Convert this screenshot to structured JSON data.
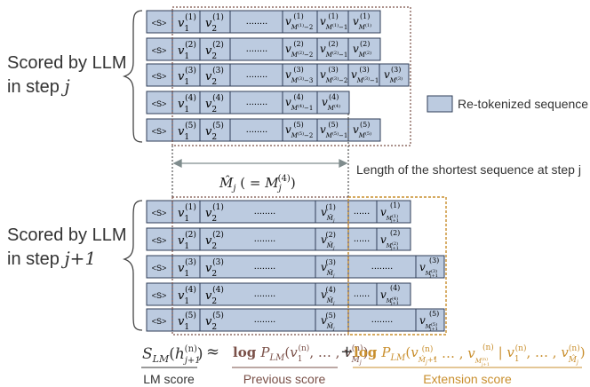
{
  "labels": {
    "top_group": [
      "Scored by LLM",
      "in step "
    ],
    "top_step": "j",
    "bottom_group": [
      "Scored by LLM",
      "in step "
    ],
    "bottom_step": "j+1",
    "legend": "Re-tokenized sequence",
    "shortest_desc": "Length of the shortest sequence at step j",
    "lm_score": "LM score",
    "previous_score": "Previous score",
    "extension_score": "Extension score",
    "approx": "≈",
    "plus": "+"
  },
  "colors": {
    "cell_fill": "#bccbe0",
    "cell_stroke": "#2f3e57",
    "previous": "#7a5048",
    "extension": "#c98f2e",
    "arrow": "#7f8c8d",
    "text": "#333333"
  },
  "top_rows": [
    [
      "<S>",
      "v1(1)",
      "v2(1)",
      "........",
      "vM(1)-2(1)",
      "vM(1)-1(1)",
      "vM(1)(1)"
    ],
    [
      "<S>",
      "v1(2)",
      "v2(2)",
      "........",
      "vM(2)-2(2)",
      "vM(2)-1(2)",
      "vM(2)(2)"
    ],
    [
      "<S>",
      "v1(3)",
      "v2(3)",
      "........",
      "vM(3)-3(3)",
      "vM(3)-2(3)",
      "vM(3)-1(3)",
      "vM(3)(3)"
    ],
    [
      "<S>",
      "v1(4)",
      "v2(4)",
      "........",
      "vM(4)-1(4)",
      "vM(4)(4)"
    ],
    [
      "<S>",
      "v1(5)",
      "v2(5)",
      "........",
      "vM(5)-2(5)",
      "vM(5)-1(5)",
      "vM(5)(5)"
    ]
  ],
  "bottom_rows": [
    [
      "<S>",
      "v1(1)",
      "v2(1)",
      "........",
      "vMj(1)",
      "......",
      "vMj+1(1)"
    ],
    [
      "<S>",
      "v1(2)",
      "v2(2)",
      "........",
      "vMj(2)",
      "......",
      "vMj+1(2)"
    ],
    [
      "<S>",
      "v1(3)",
      "v2(3)",
      "........",
      "vMj(3)",
      "........",
      "vMj+1(3)"
    ],
    [
      "<S>",
      "v1(4)",
      "v2(4)",
      "........",
      "vMj(4)",
      "......",
      "vMj+1(4)"
    ],
    [
      "<S>",
      "v1(5)",
      "v2(5)",
      "........",
      "vMj(5)",
      "........",
      "vMj+1(5)"
    ]
  ]
}
